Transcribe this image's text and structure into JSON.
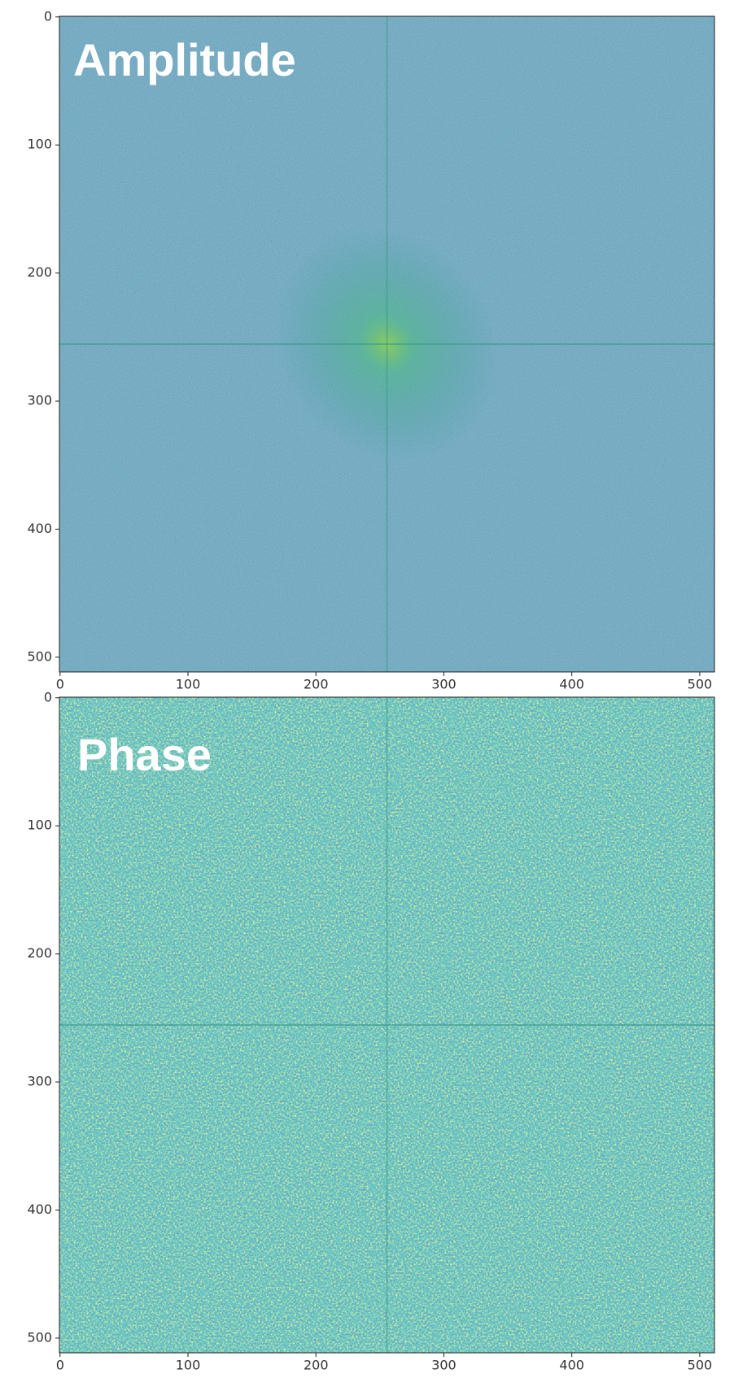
{
  "chart_data": [
    {
      "type": "image",
      "title": "Amplitude",
      "xlim": [
        -0.5,
        511.5
      ],
      "ylim": [
        511.5,
        -0.5
      ],
      "xticks": [
        0,
        100,
        200,
        300,
        400,
        500
      ],
      "yticks": [
        0,
        100,
        200,
        300,
        400,
        500
      ]
    },
    {
      "type": "image",
      "title": "Phase",
      "xlim": [
        -0.5,
        511.5
      ],
      "ylim": [
        511.5,
        -0.5
      ],
      "xticks": [
        0,
        100,
        200,
        300,
        400,
        500
      ],
      "yticks": [
        0,
        100,
        200,
        300,
        400,
        500
      ]
    }
  ]
}
